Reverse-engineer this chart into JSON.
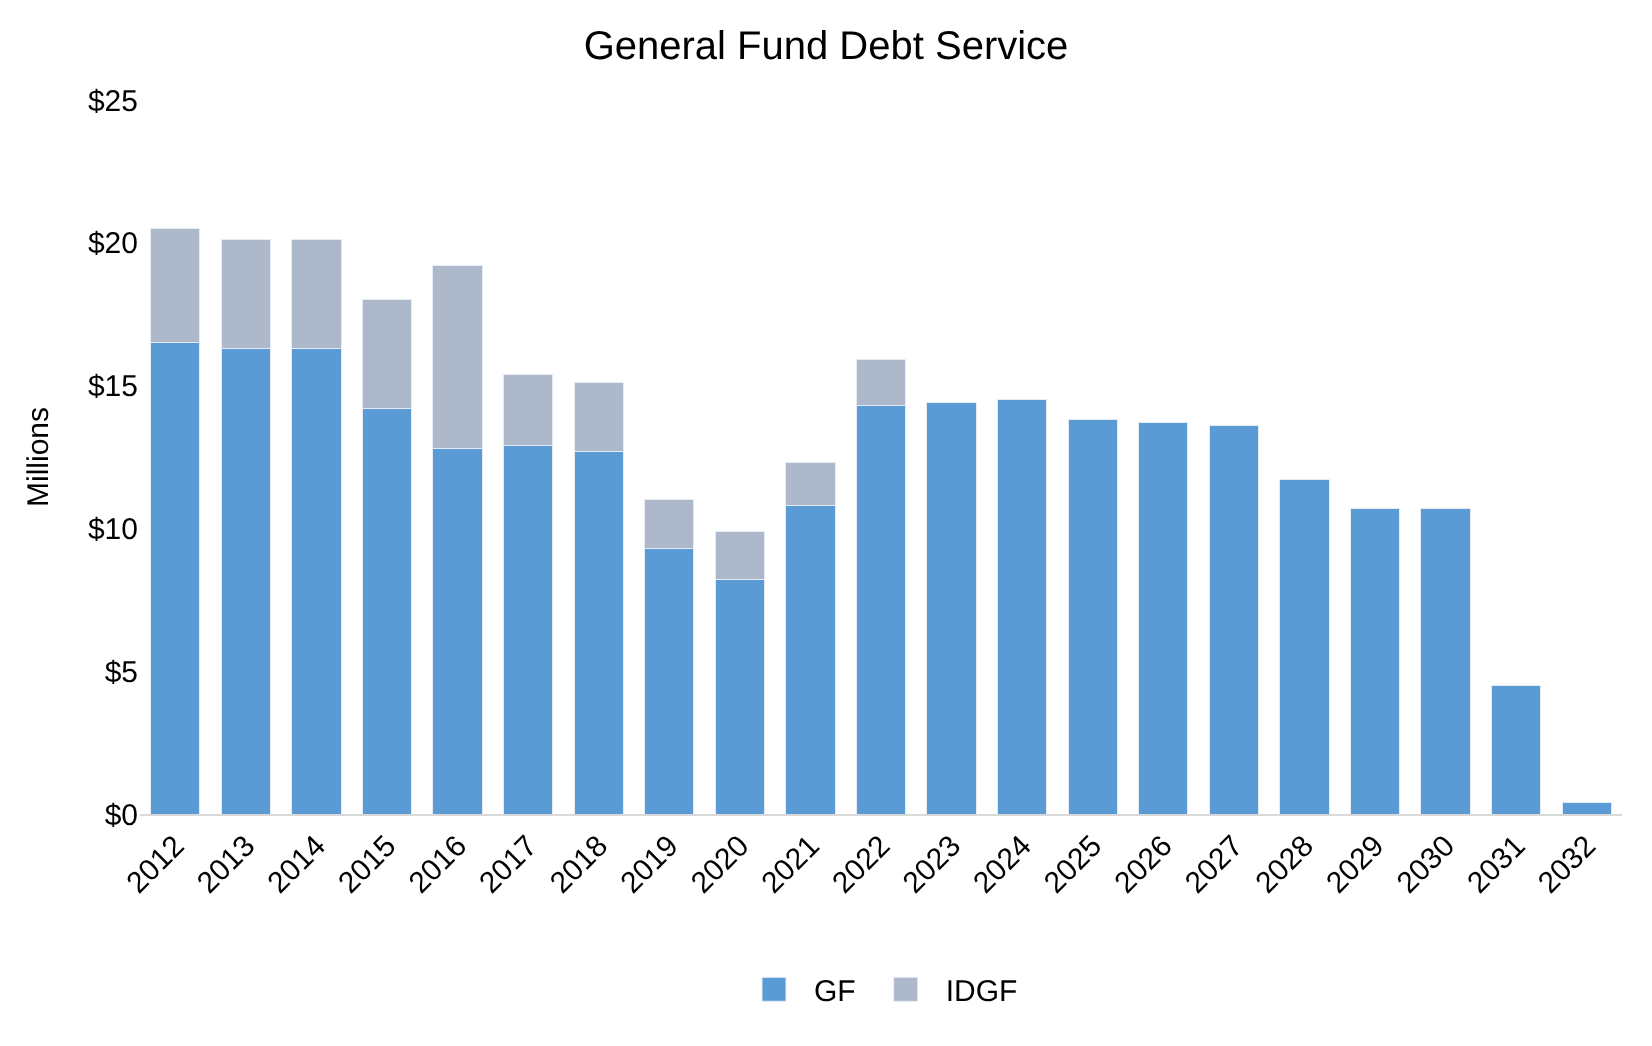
{
  "chart_data": {
    "type": "bar",
    "title": "General Fund Debt Service",
    "ylabel": "Millions",
    "stacked": true,
    "legend": "bottom",
    "categories": [
      "2012",
      "2013",
      "2014",
      "2015",
      "2016",
      "2017",
      "2018",
      "2019",
      "2020",
      "2021",
      "2022",
      "2023",
      "2024",
      "2025",
      "2026",
      "2027",
      "2028",
      "2029",
      "2030",
      "2031",
      "2032"
    ],
    "series": [
      {
        "name": "GF",
        "color": "#5b9bd5",
        "values": [
          16.5,
          16.3,
          16.3,
          14.2,
          12.8,
          12.9,
          12.7,
          9.3,
          8.2,
          10.8,
          14.3,
          14.4,
          14.5,
          13.8,
          13.7,
          13.6,
          11.7,
          10.7,
          10.7,
          4.5,
          0.4
        ]
      },
      {
        "name": "IDGF",
        "color": "#adb9ca",
        "values": [
          4.0,
          3.8,
          3.8,
          3.8,
          6.4,
          2.5,
          2.4,
          1.7,
          1.7,
          1.5,
          1.6,
          null,
          null,
          null,
          null,
          null,
          null,
          null,
          null,
          null,
          null
        ]
      }
    ],
    "ylim": [
      0,
      25
    ],
    "yticks": [
      {
        "value": 0,
        "label": "$0"
      },
      {
        "value": 5,
        "label": "$5"
      },
      {
        "value": 10,
        "label": "$10"
      },
      {
        "value": 15,
        "label": "$15"
      },
      {
        "value": 20,
        "label": "$20"
      },
      {
        "value": 25,
        "label": "$25"
      }
    ]
  }
}
